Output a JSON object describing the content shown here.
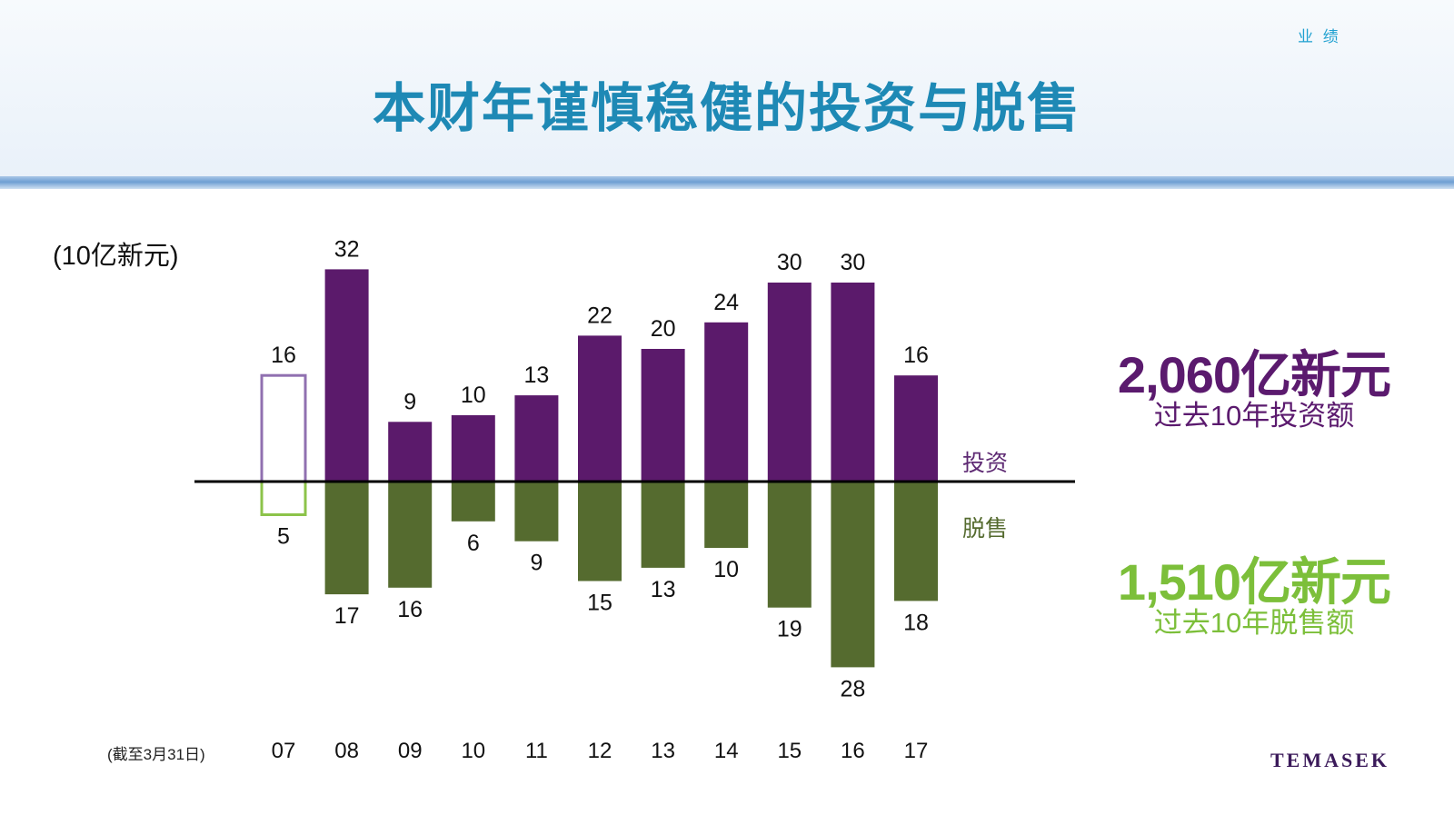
{
  "header": {
    "section_tag": "业 绩",
    "title": "本财年谨慎稳健的投资与脱售"
  },
  "chart": {
    "unit_label": "(10亿新元)",
    "cutoff_note": "(截至3月31日)",
    "legend_invest": "投资",
    "legend_divest": "脱售"
  },
  "summary": {
    "invest_value": "2,060亿新元",
    "invest_label": "过去10年投资额",
    "divest_value": "1,510亿新元",
    "divest_label": "过去10年脱售额"
  },
  "brand": {
    "logo_text": "TEMASEK"
  },
  "colors": {
    "invest": "#5b1a6b",
    "divest": "#556b2f",
    "invest_outline": "#9070b0",
    "divest_outline": "#8cc34a",
    "title": "#1e89b5"
  },
  "chart_data": {
    "type": "bar",
    "categories": [
      "07",
      "08",
      "09",
      "10",
      "11",
      "12",
      "13",
      "14",
      "15",
      "16",
      "17"
    ],
    "series": [
      {
        "name": "投资",
        "values": [
          16,
          32,
          9,
          10,
          13,
          22,
          20,
          24,
          30,
          30,
          16
        ]
      },
      {
        "name": "脱售",
        "values": [
          -5,
          -17,
          -16,
          -6,
          -9,
          -15,
          -13,
          -10,
          -19,
          -28,
          -18
        ]
      }
    ],
    "outlined_categories": [
      "07"
    ],
    "ylabel": "(10亿新元)",
    "grid": false,
    "legend": "right"
  }
}
